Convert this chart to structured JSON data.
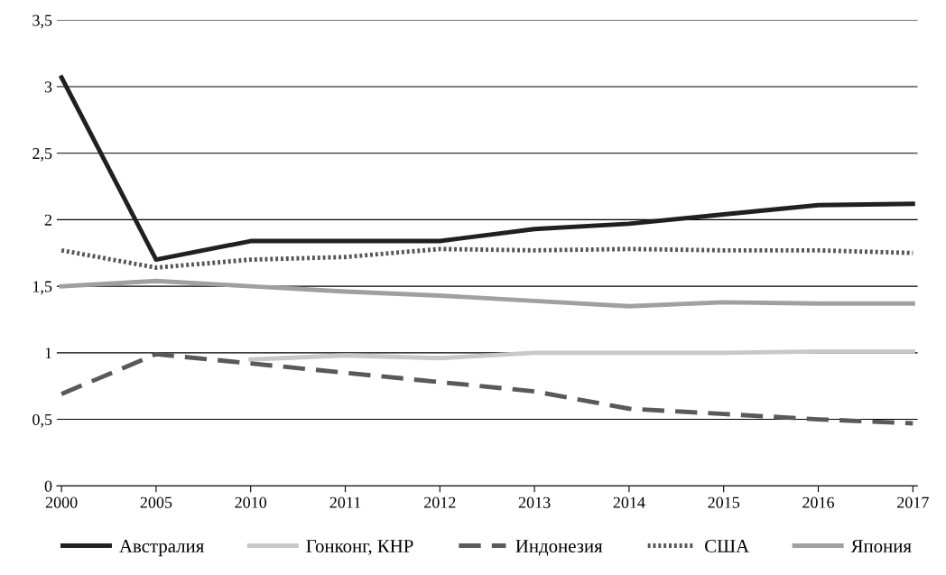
{
  "chart_data": {
    "type": "line",
    "categories": [
      "2000",
      "2005",
      "2010",
      "2011",
      "2012",
      "2013",
      "2014",
      "2015",
      "2016",
      "2017"
    ],
    "series": [
      {
        "name": "Австралия",
        "color": "#231f20",
        "line_style": "solid",
        "values": [
          3.07,
          1.7,
          1.84,
          1.84,
          1.84,
          1.93,
          1.97,
          2.04,
          2.11,
          2.12
        ]
      },
      {
        "name": "Гонконг, КНР",
        "color": "#c8c8c8",
        "line_style": "solid",
        "values": [
          null,
          null,
          0.95,
          0.98,
          0.96,
          1.0,
          1.0,
          1.0,
          1.01,
          1.01
        ]
      },
      {
        "name": "Индонезия",
        "color": "#595959",
        "line_style": "dashed",
        "values": [
          0.69,
          0.99,
          0.92,
          0.85,
          0.78,
          0.71,
          0.58,
          0.54,
          0.5,
          0.47
        ]
      },
      {
        "name": "США",
        "color": "#555555",
        "line_style": "dotted",
        "values": [
          1.77,
          1.64,
          1.7,
          1.72,
          1.78,
          1.77,
          1.78,
          1.77,
          1.77,
          1.75
        ]
      },
      {
        "name": "Япония",
        "color": "#a0a0a0",
        "line_style": "solid",
        "values": [
          1.5,
          1.54,
          1.5,
          1.46,
          1.43,
          1.39,
          1.35,
          1.38,
          1.37,
          1.37
        ]
      }
    ],
    "ylim": [
      0,
      3.5
    ],
    "yticks": [
      0,
      {
        "value": 0.5,
        "label": "0,5"
      },
      1,
      {
        "value": 1.5,
        "label": "1,5"
      },
      2,
      {
        "value": 2.5,
        "label": "2,5"
      },
      3,
      {
        "value": 3.5,
        "label": "3,5"
      }
    ],
    "grid": "y",
    "legend": "bottom",
    "marker": "none"
  }
}
